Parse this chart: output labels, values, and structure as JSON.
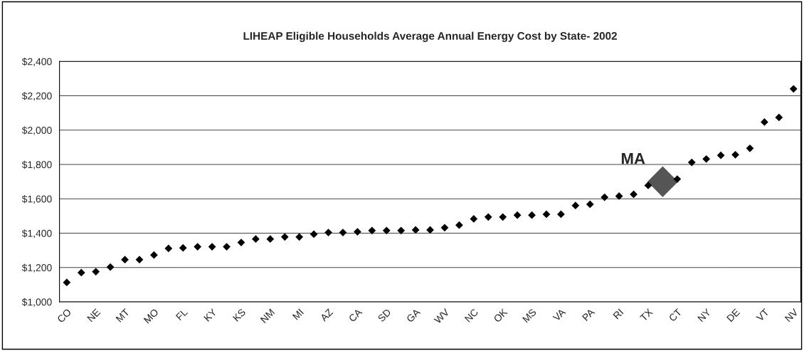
{
  "chart_data": {
    "type": "scatter",
    "title": "LIHEAP Eligible Households Average Annual Energy Cost by State- 2002",
    "categories": [
      "CO",
      null,
      "NE",
      null,
      "MT",
      null,
      "MO",
      null,
      "FL",
      null,
      "KY",
      null,
      "KS",
      null,
      "NM",
      null,
      "MI",
      null,
      "AZ",
      null,
      "CA",
      null,
      "SD",
      null,
      "GA",
      null,
      "WV",
      null,
      "NC",
      null,
      "OK",
      null,
      "MS",
      null,
      "VA",
      null,
      "PA",
      null,
      "RI",
      null,
      "TX",
      null,
      "CT",
      null,
      "NY",
      null,
      "DE",
      null,
      "VT",
      null,
      "NV"
    ],
    "series": [
      {
        "color": "#000000",
        "values": [
          1113,
          1170,
          1176,
          1203,
          1246,
          1246,
          1273,
          1311,
          1314,
          1321,
          1321,
          1321,
          1346,
          1366,
          1366,
          1378,
          1378,
          1394,
          1404,
          1404,
          1408,
          1415,
          1415,
          1415,
          1419,
          1419,
          1432,
          1447,
          1483,
          1494,
          1494,
          1505,
          1505,
          1510,
          1510,
          1561,
          1568,
          1609,
          1616,
          1626,
          1678,
          null,
          1715,
          1812,
          1832,
          1853,
          1857,
          1894,
          2047,
          2074,
          2240
        ]
      },
      {
        "color": "#555555",
        "values": [
          null,
          null,
          null,
          null,
          null,
          null,
          null,
          null,
          null,
          null,
          null,
          null,
          null,
          null,
          null,
          null,
          null,
          null,
          null,
          null,
          null,
          null,
          null,
          null,
          null,
          null,
          null,
          null,
          null,
          null,
          null,
          null,
          null,
          null,
          null,
          null,
          null,
          null,
          null,
          null,
          null,
          1700,
          null,
          null,
          null,
          null,
          null,
          null,
          null,
          null,
          null
        ]
      }
    ],
    "annotations": [
      "MA"
    ],
    "ylim": [
      1000,
      2400
    ],
    "yticks": [
      {
        "value": 1000,
        "label": "$1,000"
      },
      {
        "value": 1200,
        "label": "$1,200"
      },
      {
        "value": 1400,
        "label": "$1,400"
      },
      {
        "value": 1600,
        "label": "$1,600"
      },
      {
        "value": 1800,
        "label": "$1,800"
      },
      {
        "value": 2000,
        "label": "$2,000"
      },
      {
        "value": 2200,
        "label": "$2,200"
      },
      {
        "value": 2400,
        "label": "$2,400"
      }
    ],
    "grid": "y",
    "marker": "diamond"
  }
}
